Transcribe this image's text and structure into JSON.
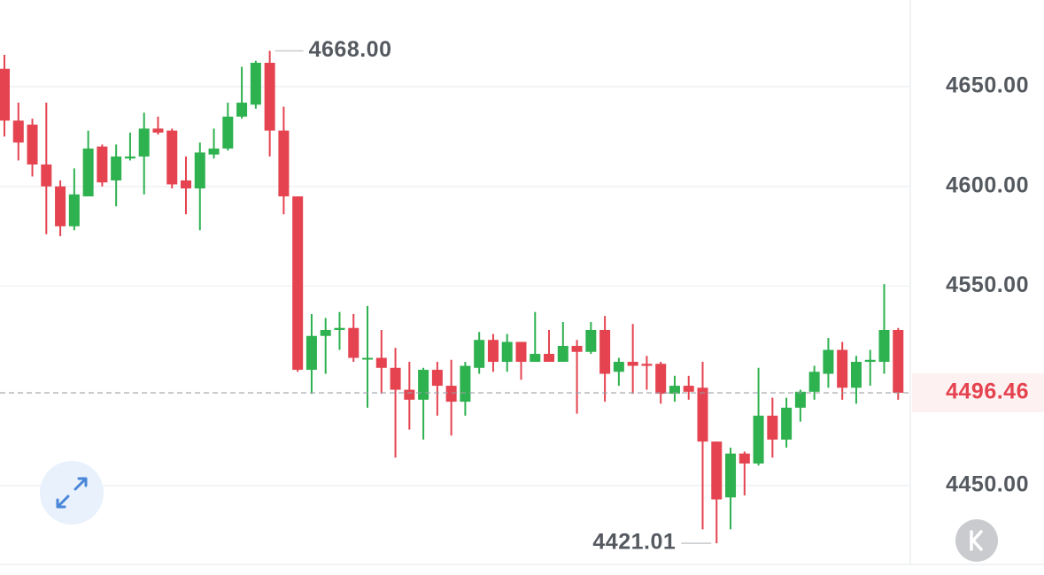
{
  "chart_data": {
    "type": "candlestick",
    "up_color": "#2eb14f",
    "down_color": "#e4434f",
    "ylim": [
      4410.4,
      4693.5
    ],
    "yticks": [
      {
        "value": 4450,
        "label": "4450.00"
      },
      {
        "value": 4550,
        "label": "4550.00"
      },
      {
        "value": 4600,
        "label": "4600.00"
      },
      {
        "value": 4650,
        "label": "4650.00"
      }
    ],
    "grid": true,
    "open": [
      4659,
      4633,
      4631,
      4611,
      4600,
      4580,
      4595,
      4620,
      4603,
      4614,
      4615,
      4629,
      4628,
      4603,
      4599,
      4616,
      4619,
      4635,
      4641,
      4662,
      4628,
      4595,
      4508,
      4525,
      4528,
      4529,
      4514,
      4514,
      4509,
      4498,
      4493,
      4508,
      4500,
      4492,
      4509,
      4523,
      4512,
      4522,
      4512,
      4516,
      4512,
      4520,
      4517,
      4528,
      4507,
      4512,
      4511,
      4511,
      4496,
      4500,
      4499,
      4472,
      4444,
      4466,
      4461,
      4485,
      4473,
      4489,
      4497,
      4506,
      4518,
      4499,
      4512,
      4512,
      4528
    ],
    "high": [
      4666,
      4642,
      4634,
      4642,
      4603,
      4609,
      4628,
      4621,
      4621,
      4627,
      4637,
      4635,
      4629,
      4615,
      4622,
      4629,
      4642,
      4660,
      4663,
      4668,
      4640,
      4595,
      4536,
      4534,
      4537,
      4536,
      4540,
      4528,
      4519,
      4512,
      4509,
      4512,
      4513,
      4512,
      4527,
      4526,
      4526,
      4522,
      4537,
      4528,
      4532,
      4523,
      4532,
      4535,
      4514,
      4531,
      4515,
      4512,
      4505,
      4505,
      4512,
      4472,
      4469,
      4467,
      4509,
      4494,
      4494,
      4498,
      4510,
      4524,
      4522,
      4515,
      4518,
      4551,
      4529
    ],
    "low": [
      4625,
      4613,
      4605,
      4576,
      4575,
      4578,
      4595,
      4600,
      4590,
      4613,
      4596,
      4626,
      4599,
      4586,
      4578,
      4614,
      4618,
      4634,
      4639,
      4615,
      4586,
      4507,
      4496,
      4506,
      4518,
      4512,
      4489,
      4496,
      4464,
      4478,
      4473,
      4485,
      4475,
      4485,
      4506,
      4507,
      4507,
      4503,
      4512,
      4512,
      4512,
      4486,
      4516,
      4492,
      4500,
      4496,
      4498,
      4491,
      4492,
      4493,
      4428,
      4421.01,
      4428,
      4445,
      4460,
      4464,
      4469,
      4482,
      4493,
      4499,
      4493,
      4491,
      4500,
      4506,
      4493
    ],
    "close": [
      4633,
      4622,
      4611,
      4600,
      4580,
      4596,
      4619,
      4602,
      4615,
      4615,
      4629,
      4627,
      4601,
      4599,
      4617,
      4619,
      4635,
      4642,
      4662,
      4628,
      4595,
      4508,
      4525,
      4528,
      4529,
      4514,
      4514,
      4509,
      4498,
      4493,
      4508,
      4500,
      4492,
      4510,
      4523,
      4512,
      4522,
      4512,
      4516,
      4512,
      4520,
      4517,
      4528,
      4506,
      4512,
      4510,
      4510,
      4496,
      4500,
      4497,
      4472,
      4443,
      4466,
      4461,
      4485,
      4473,
      4489,
      4497,
      4507,
      4518,
      4499,
      4512,
      4513,
      4528,
      4496.46
    ],
    "annotations": [
      {
        "value": 4668,
        "label": "4668.00",
        "index": 19
      },
      {
        "value": 4421.01,
        "label": "4421.01",
        "index": 51
      }
    ],
    "last_price": {
      "value": 4496.46,
      "label": "4496.46",
      "color": "#e4434f"
    }
  }
}
